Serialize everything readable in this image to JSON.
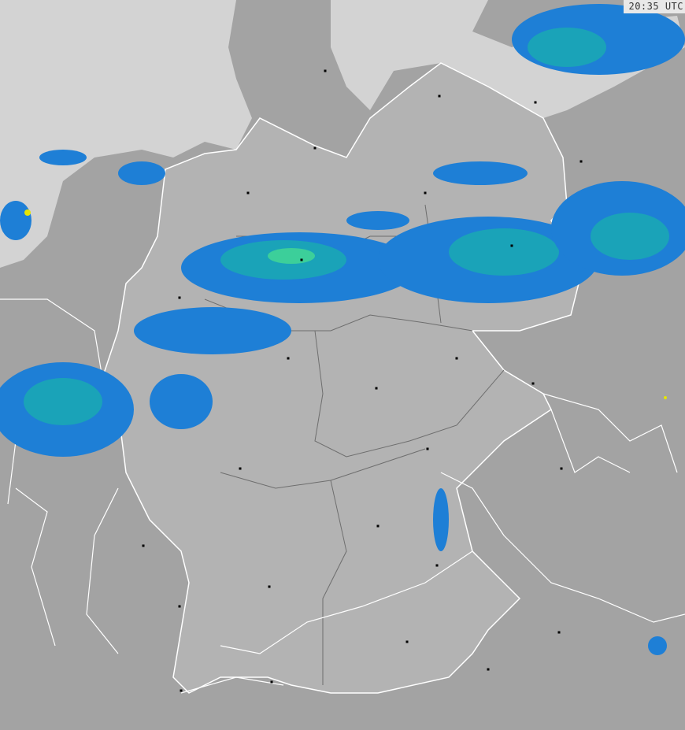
{
  "timestamp": "20:35 UTC",
  "colors": {
    "sea": "#d3d3d3",
    "land_outside": "#a3a3a3",
    "land_germany": "#b3b3b3",
    "border": "#ffffff",
    "state_border": "#6e6e6e",
    "radar_light": "#1e7fd6",
    "radar_mid": "#1aa3b8",
    "radar_strong": "#3ccf9a",
    "radar_peak": "#e6e600",
    "city_dot": "#000000"
  }
}
